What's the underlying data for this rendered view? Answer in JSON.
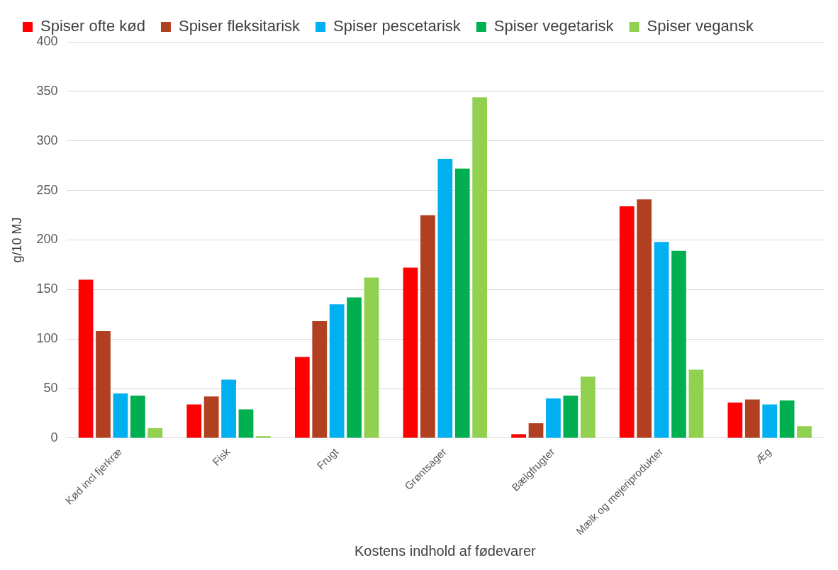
{
  "chart_data": {
    "type": "bar",
    "xlabel": "Kostens indhold af fødevarer",
    "ylabel": "g/10 MJ",
    "categories": [
      "Kød incl fjerkræ",
      "Fisk",
      "Frugt",
      "Grøntsager",
      "Bælgfrugter",
      "Mælk og mejeriprodukter",
      "Æg"
    ],
    "series": [
      {
        "name": "Spiser ofte kød",
        "color": "#ff0000",
        "values": [
          160,
          34,
          82,
          172,
          4,
          234,
          36
        ]
      },
      {
        "name": "Spiser fleksitarisk",
        "color": "#b04020",
        "values": [
          108,
          42,
          118,
          225,
          15,
          241,
          39
        ]
      },
      {
        "name": "Spiser pescetarisk",
        "color": "#00b0f0",
        "values": [
          45,
          59,
          135,
          282,
          40,
          198,
          34
        ]
      },
      {
        "name": "Spiser vegetarisk",
        "color": "#00b050",
        "values": [
          43,
          29,
          142,
          272,
          43,
          189,
          38
        ]
      },
      {
        "name": "Spiser vegansk",
        "color": "#92d050",
        "values": [
          10,
          2,
          162,
          344,
          62,
          69,
          12
        ]
      }
    ],
    "ylim": [
      0,
      400
    ],
    "yticks": [
      0,
      50,
      100,
      150,
      200,
      250,
      300,
      350,
      400
    ],
    "grid": "y",
    "legend": "top"
  }
}
